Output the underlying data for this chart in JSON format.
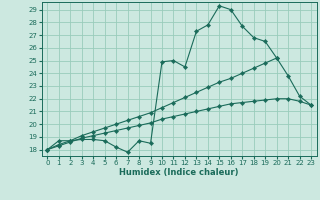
{
  "xlabel": "Humidex (Indice chaleur)",
  "background_color": "#cce8e0",
  "grid_color": "#99ccbb",
  "line_color": "#1a6b5a",
  "xlim": [
    -0.5,
    23.5
  ],
  "ylim": [
    17.5,
    29.6
  ],
  "xticks": [
    0,
    1,
    2,
    3,
    4,
    5,
    6,
    7,
    8,
    9,
    10,
    11,
    12,
    13,
    14,
    15,
    16,
    17,
    18,
    19,
    20,
    21,
    22,
    23
  ],
  "yticks": [
    18,
    19,
    20,
    21,
    22,
    23,
    24,
    25,
    26,
    27,
    28,
    29
  ],
  "line1_x": [
    0,
    1,
    2,
    3,
    4,
    5,
    6,
    7,
    8,
    9,
    10,
    11,
    12,
    13,
    14,
    15,
    16,
    17,
    18,
    19,
    20,
    21,
    22,
    23
  ],
  "line1_y": [
    18.0,
    18.7,
    18.7,
    18.8,
    18.8,
    18.7,
    18.2,
    17.8,
    18.7,
    18.5,
    24.9,
    25.0,
    24.5,
    27.3,
    27.8,
    29.3,
    29.0,
    27.7,
    26.8,
    26.5,
    25.2,
    23.8,
    22.2,
    21.5
  ],
  "line2_x": [
    0,
    1,
    2,
    3,
    4,
    5,
    6,
    7,
    8,
    9,
    10,
    11,
    12,
    13,
    14,
    15,
    16,
    17,
    18,
    19,
    20,
    21,
    22,
    23
  ],
  "line2_y": [
    18.0,
    18.3,
    18.6,
    18.9,
    19.1,
    19.3,
    19.5,
    19.7,
    19.9,
    20.1,
    20.4,
    20.6,
    20.8,
    21.0,
    21.2,
    21.4,
    21.6,
    21.7,
    21.8,
    21.9,
    22.0,
    22.0,
    21.8,
    21.5
  ],
  "line3_x": [
    0,
    1,
    2,
    3,
    4,
    5,
    6,
    7,
    8,
    9,
    10,
    11,
    12,
    13,
    14,
    15,
    16,
    17,
    18,
    19,
    20
  ],
  "line3_y": [
    18.0,
    18.4,
    18.7,
    19.1,
    19.4,
    19.7,
    20.0,
    20.3,
    20.6,
    20.9,
    21.3,
    21.7,
    22.1,
    22.5,
    22.9,
    23.3,
    23.6,
    24.0,
    24.4,
    24.8,
    25.2
  ]
}
